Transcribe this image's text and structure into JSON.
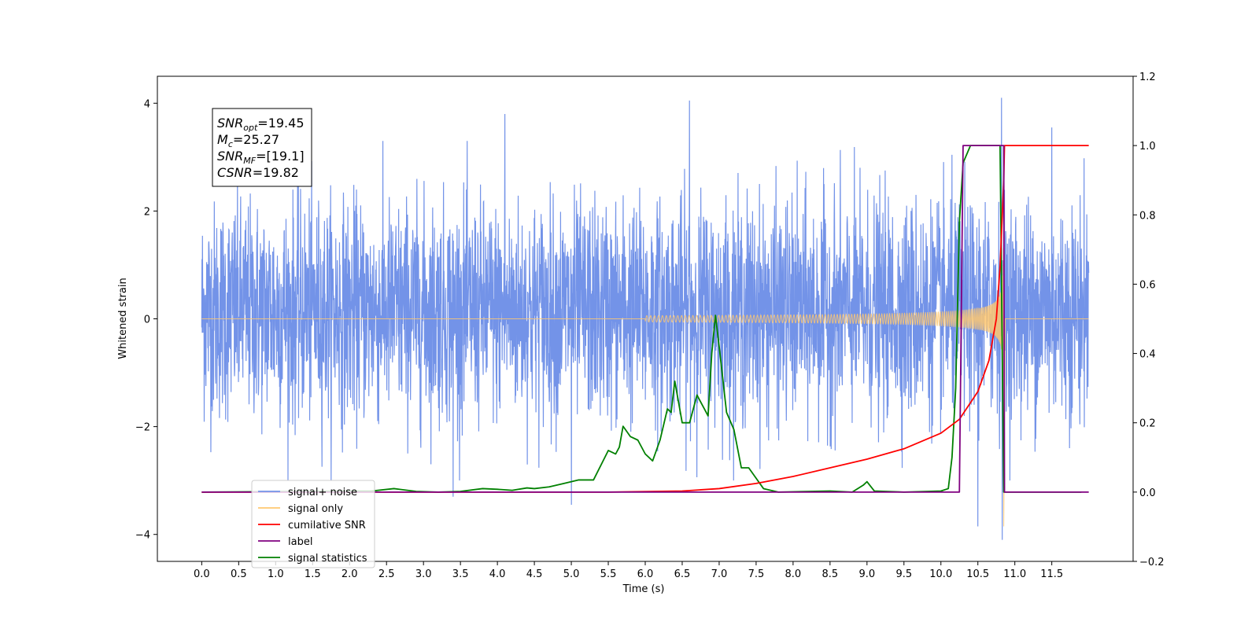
{
  "chart_data": {
    "type": "line",
    "xlabel": "Time (s)",
    "ylabel": "Whitened strain",
    "xlim": [
      -0.6,
      12.6
    ],
    "ylim": [
      -4.5,
      4.5
    ],
    "y2lim": [
      -0.2,
      1.2
    ],
    "x_ticks": [
      "0.0",
      "0.5",
      "1.0",
      "1.5",
      "2.0",
      "2.5",
      "3.0",
      "3.5",
      "4.0",
      "4.5",
      "5.0",
      "5.5",
      "6.0",
      "6.5",
      "7.0",
      "7.5",
      "8.0",
      "8.5",
      "9.0",
      "9.5",
      "10.0",
      "10.5",
      "11.0",
      "11.5"
    ],
    "y_ticks": [
      4,
      2,
      0,
      -2,
      -4
    ],
    "y2_ticks": [
      "1.2",
      "1.0",
      "0.8",
      "0.6",
      "0.4",
      "0.2",
      "0.0",
      "−0.2"
    ],
    "annotation": [
      {
        "base": "SNR",
        "sub": "opt",
        "value": "=19.45"
      },
      {
        "base": "M",
        "sub": "c",
        "value": "=25.27"
      },
      {
        "base": "SNR",
        "sub": "MF",
        "value": "=[19.1]"
      },
      {
        "base": "CSNR",
        "sub": "",
        "value": "=19.82"
      }
    ],
    "legend": {
      "placement": "lower-left",
      "entries": [
        {
          "name": "signal+ noise",
          "color": "#7393e8"
        },
        {
          "name": "signal only",
          "color": "#ffc870"
        },
        {
          "name": "cumilative SNR",
          "color": "#ff0000"
        },
        {
          "name": "label",
          "color": "#800080"
        },
        {
          "name": "signal statistics",
          "color": "#008000"
        }
      ]
    },
    "series": [
      {
        "name": "signal+ noise",
        "axis": "left",
        "color": "#7393e8",
        "x_range": [
          0.0,
          12.0
        ],
        "envelope_typical": [
          -2.5,
          3.5
        ],
        "extreme_spikes": [
          {
            "x": 6.6,
            "y": 4.05
          },
          {
            "x": 10.82,
            "y": 4.1
          },
          {
            "x": 10.83,
            "y": -4.1
          },
          {
            "x": 10.5,
            "y": -3.85
          },
          {
            "x": 5.0,
            "y": -3.45
          },
          {
            "x": 3.4,
            "y": -3.3
          },
          {
            "x": 4.1,
            "y": 3.8
          },
          {
            "x": 11.5,
            "y": 3.55
          }
        ]
      },
      {
        "name": "signal only",
        "axis": "left",
        "color": "#ffc870",
        "chirp_start": 6.0,
        "merger_time": 10.85,
        "peak_amplitude": 3.85
      },
      {
        "name": "cumilative SNR",
        "axis": "right",
        "color": "#ff0000",
        "x": [
          0.0,
          5.5,
          6.5,
          7.0,
          7.5,
          8.0,
          8.5,
          9.0,
          9.5,
          10.0,
          10.25,
          10.5,
          10.65,
          10.75,
          10.8,
          10.85,
          10.86,
          12.0
        ],
        "y": [
          0.0,
          0.0,
          0.003,
          0.01,
          0.025,
          0.045,
          0.07,
          0.095,
          0.125,
          0.17,
          0.21,
          0.29,
          0.38,
          0.5,
          0.65,
          0.9,
          1.0,
          1.0
        ]
      },
      {
        "name": "label",
        "axis": "right",
        "color": "#800080",
        "x": [
          0.0,
          10.25,
          10.3,
          10.85,
          10.86,
          12.0
        ],
        "y": [
          0.0,
          0.0,
          1.0,
          1.0,
          0.0,
          0.0
        ]
      },
      {
        "name": "signal statistics",
        "axis": "right",
        "color": "#008000",
        "x": [
          0.0,
          2.3,
          2.6,
          2.9,
          3.2,
          3.5,
          3.8,
          4.0,
          4.2,
          4.4,
          4.5,
          4.7,
          4.9,
          5.0,
          5.1,
          5.3,
          5.5,
          5.6,
          5.65,
          5.7,
          5.8,
          5.9,
          6.0,
          6.1,
          6.2,
          6.3,
          6.35,
          6.4,
          6.5,
          6.6,
          6.7,
          6.8,
          6.85,
          6.9,
          6.95,
          7.0,
          7.1,
          7.2,
          7.3,
          7.4,
          7.5,
          7.6,
          7.8,
          8.5,
          8.8,
          8.95,
          9.0,
          9.1,
          9.5,
          10.0,
          10.1,
          10.15,
          10.2,
          10.25,
          10.3,
          10.4,
          10.45,
          10.5,
          10.8,
          10.85,
          10.9,
          11.0,
          11.9
        ],
        "y": [
          0.0,
          0.003,
          0.01,
          0.002,
          0.0,
          0.002,
          0.01,
          0.008,
          0.005,
          0.012,
          0.01,
          0.015,
          0.025,
          0.03,
          0.035,
          0.035,
          0.12,
          0.11,
          0.13,
          0.19,
          0.16,
          0.15,
          0.11,
          0.09,
          0.15,
          0.24,
          0.23,
          0.32,
          0.2,
          0.2,
          0.28,
          0.24,
          0.22,
          0.4,
          0.51,
          0.42,
          0.23,
          0.18,
          0.07,
          0.07,
          0.04,
          0.01,
          0.0,
          0.003,
          0.0,
          0.02,
          0.03,
          0.003,
          0.0,
          0.003,
          0.01,
          0.1,
          0.3,
          0.78,
          0.95,
          1.0,
          1.0,
          1.0,
          1.0,
          0.0,
          0.0,
          0.0,
          0.0
        ]
      }
    ]
  }
}
